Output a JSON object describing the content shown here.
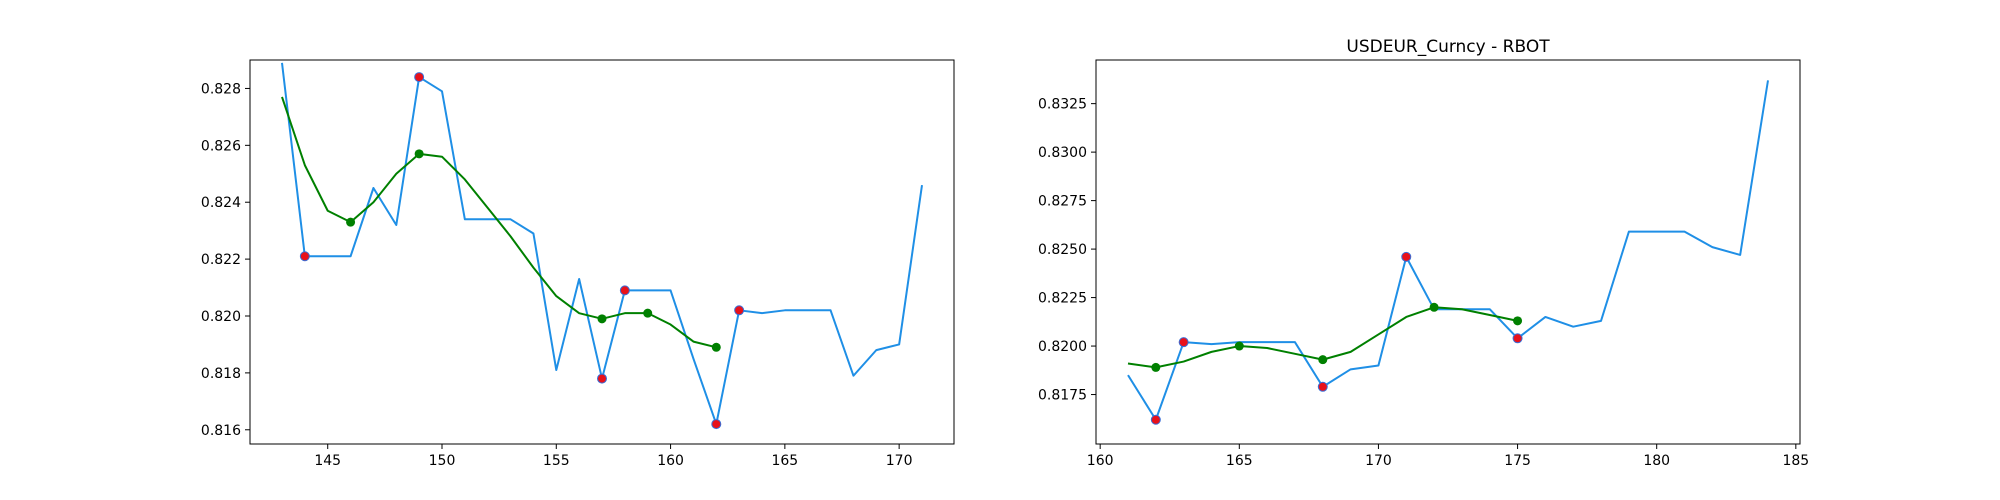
{
  "colors": {
    "raw_line": "#1f8fe6",
    "smooth_line": "#008000",
    "extrema_marker": "#e8111a",
    "extrema_edge": "#3a6fd8",
    "smooth_marker": "#008000"
  },
  "chart_data": [
    {
      "type": "line",
      "title": "",
      "xlabel": "",
      "ylabel": "",
      "xlim": [
        141.6,
        172.4
      ],
      "ylim": [
        0.8155,
        0.829
      ],
      "xticks": [
        145,
        150,
        155,
        160,
        165,
        170
      ],
      "xtick_labels": [
        "145",
        "150",
        "155",
        "160",
        "165",
        "170"
      ],
      "yticks": [
        0.816,
        0.818,
        0.82,
        0.822,
        0.824,
        0.826,
        0.828
      ],
      "ytick_labels": [
        "0.816",
        "0.818",
        "0.820",
        "0.822",
        "0.824",
        "0.826",
        "0.828"
      ],
      "grid": false,
      "series": [
        {
          "role": "raw",
          "x": [
            143,
            144,
            145,
            146,
            147,
            148,
            149,
            150,
            151,
            152,
            153,
            154,
            155,
            156,
            157,
            158,
            159,
            160,
            161,
            162,
            163,
            164,
            165,
            166,
            167,
            168,
            169,
            170,
            171
          ],
          "y": [
            0.8289,
            0.8221,
            0.8221,
            0.8221,
            0.8245,
            0.8232,
            0.8284,
            0.8279,
            0.8234,
            0.8234,
            0.8234,
            0.8229,
            0.8181,
            0.8213,
            0.8178,
            0.8209,
            0.8209,
            0.8209,
            0.8185,
            0.8162,
            0.8202,
            0.8201,
            0.8202,
            0.8202,
            0.8202,
            0.8179,
            0.8188,
            0.819,
            0.8246
          ]
        },
        {
          "role": "smoothed",
          "x": [
            143,
            144,
            145,
            146,
            147,
            148,
            149,
            150,
            151,
            152,
            153,
            154,
            155,
            156,
            157,
            158,
            159,
            160,
            161,
            162
          ],
          "y": [
            0.8277,
            0.8253,
            0.8237,
            0.8233,
            0.824,
            0.825,
            0.8257,
            0.8256,
            0.8248,
            0.8238,
            0.8228,
            0.8217,
            0.8207,
            0.8201,
            0.8199,
            0.8201,
            0.8201,
            0.8197,
            0.8191,
            0.8189
          ]
        },
        {
          "role": "extrema",
          "x": [
            144,
            149,
            157,
            158,
            162,
            163
          ],
          "y": [
            0.8221,
            0.8284,
            0.8178,
            0.8209,
            0.8162,
            0.8202
          ]
        },
        {
          "role": "smoothed_markers",
          "x": [
            146,
            149,
            157,
            159,
            162
          ],
          "y": [
            0.8233,
            0.8257,
            0.8199,
            0.8201,
            0.8189
          ]
        }
      ]
    },
    {
      "type": "line",
      "title": "USDEUR_Curncy - RBOT",
      "xlabel": "",
      "ylabel": "",
      "xlim": [
        159.85,
        185.15
      ],
      "ylim": [
        0.81495,
        0.83475
      ],
      "xticks": [
        160,
        165,
        170,
        175,
        180,
        185
      ],
      "xtick_labels": [
        "160",
        "165",
        "170",
        "175",
        "180",
        "185"
      ],
      "yticks": [
        0.8175,
        0.82,
        0.8225,
        0.825,
        0.8275,
        0.83,
        0.8325
      ],
      "ytick_labels": [
        "0.8175",
        "0.8200",
        "0.8225",
        "0.8250",
        "0.8275",
        "0.8300",
        "0.8325"
      ],
      "grid": false,
      "series": [
        {
          "role": "raw",
          "x": [
            161,
            162,
            163,
            164,
            165,
            166,
            167,
            168,
            169,
            170,
            171,
            172,
            173,
            174,
            175,
            176,
            177,
            178,
            179,
            180,
            181,
            182,
            183,
            184
          ],
          "y": [
            0.8185,
            0.8162,
            0.8202,
            0.8201,
            0.8202,
            0.8202,
            0.8202,
            0.8179,
            0.8188,
            0.819,
            0.8246,
            0.8219,
            0.8219,
            0.8219,
            0.8204,
            0.8215,
            0.821,
            0.8213,
            0.8259,
            0.8259,
            0.8259,
            0.8251,
            0.8247,
            0.8337
          ]
        },
        {
          "role": "smoothed",
          "x": [
            161,
            162,
            163,
            164,
            165,
            166,
            167,
            168,
            169,
            170,
            171,
            172,
            173,
            174,
            175
          ],
          "y": [
            0.8191,
            0.8189,
            0.8192,
            0.8197,
            0.82,
            0.8199,
            0.8196,
            0.8193,
            0.8197,
            0.8206,
            0.8215,
            0.822,
            0.8219,
            0.8216,
            0.8213
          ]
        },
        {
          "role": "extrema",
          "x": [
            162,
            163,
            168,
            171,
            175
          ],
          "y": [
            0.8162,
            0.8202,
            0.8179,
            0.8246,
            0.8204
          ]
        },
        {
          "role": "smoothed_markers",
          "x": [
            162,
            165,
            168,
            172,
            175
          ],
          "y": [
            0.8189,
            0.82,
            0.8193,
            0.822,
            0.8213
          ]
        }
      ]
    }
  ]
}
